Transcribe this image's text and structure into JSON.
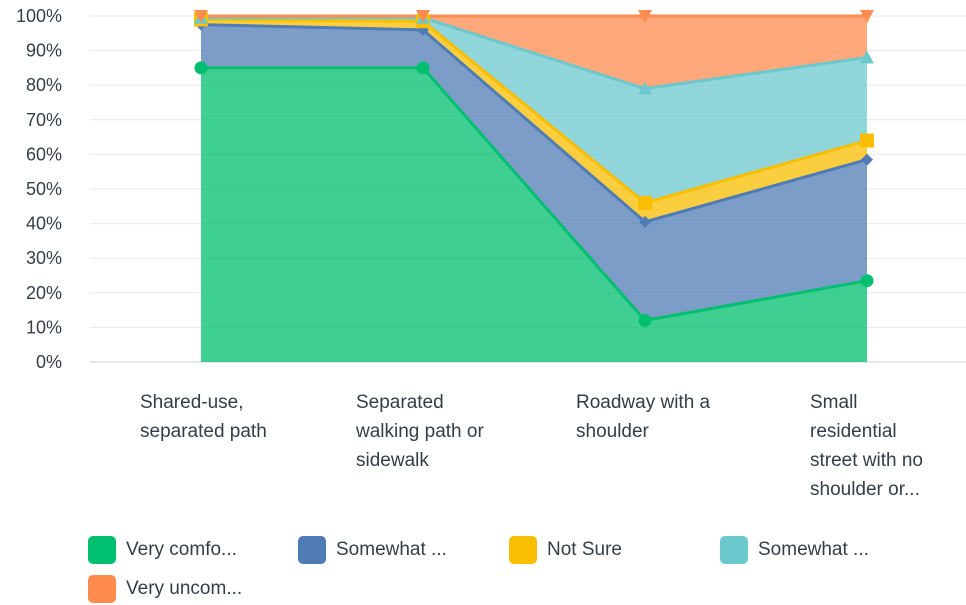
{
  "chart_data": {
    "type": "area",
    "stacked": true,
    "stack_mode": "percent",
    "title": "",
    "xlabel": "",
    "ylabel": "",
    "ylim": [
      0,
      100
    ],
    "y_ticks": [
      "0%",
      "10%",
      "20%",
      "30%",
      "40%",
      "50%",
      "60%",
      "70%",
      "80%",
      "90%",
      "100%"
    ],
    "grid": true,
    "legend_position": "bottom",
    "categories": [
      [
        "Shared-use,",
        "separated path"
      ],
      [
        "Separated",
        "walking path or",
        "sidewalk"
      ],
      [
        "Roadway with a",
        "shoulder"
      ],
      [
        "Small",
        "residential",
        "street with no",
        "shoulder or..."
      ]
    ],
    "series": [
      {
        "name": "Very comfo...",
        "color": "#00bf6f",
        "marker": "circle",
        "values": [
          85,
          85,
          12,
          23.5
        ]
      },
      {
        "name": "Somewhat ...",
        "color": "#507cb6",
        "marker": "diamond",
        "values": [
          12.5,
          11,
          28.5,
          35
        ]
      },
      {
        "name": "Not Sure",
        "color": "#f9be00",
        "marker": "square",
        "values": [
          1.5,
          2.5,
          5.5,
          5.5
        ]
      },
      {
        "name": "Somewhat ...",
        "color": "#6bc8cd",
        "marker": "triangle",
        "values": [
          0.5,
          1,
          33,
          24
        ]
      },
      {
        "name": "Very uncom...",
        "color": "#ff8b4f",
        "marker": "triangle-down",
        "values": [
          0.5,
          0.5,
          21,
          12
        ]
      }
    ]
  }
}
